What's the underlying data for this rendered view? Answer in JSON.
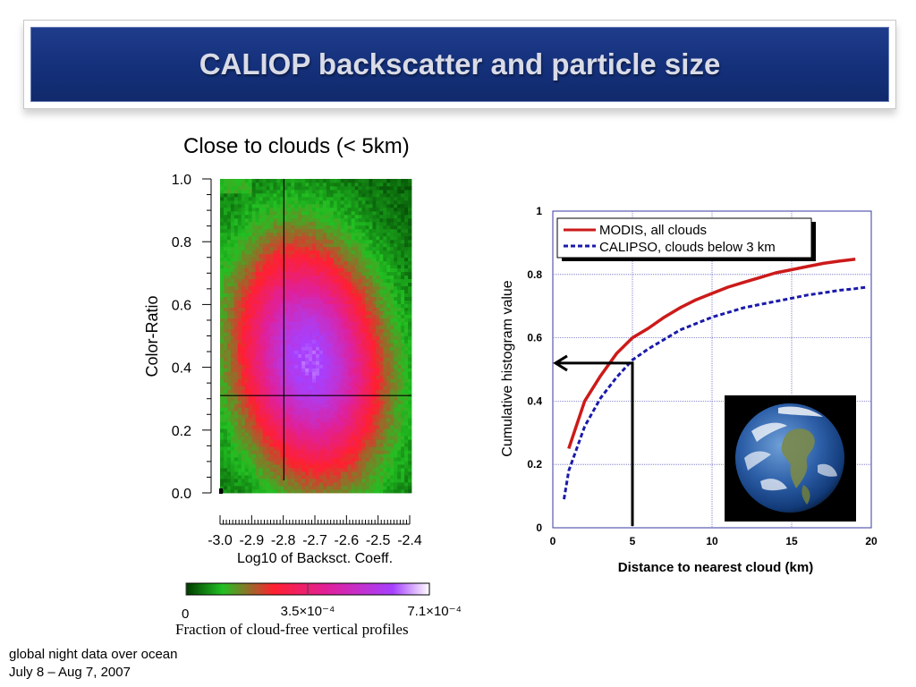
{
  "slide": {
    "title": "CALIOP backscatter and particle size",
    "subtitle": "Close to clouds (< 5km)",
    "footer_line1": "global night data over ocean",
    "footer_line2": "July 8 – Aug 7, 2007"
  },
  "chart_data": [
    {
      "type": "heatmap",
      "xlabel": "Log10 of Backsct. Coeff.",
      "ylabel": "Color-Ratio",
      "x_ticks": [
        "-3.0",
        "-2.9",
        "-2.8",
        "-2.7",
        "-2.6",
        "-2.5",
        "-2.4"
      ],
      "y_ticks": [
        "0.0",
        "0.2",
        "0.4",
        "0.6",
        "0.8",
        "1.0"
      ],
      "xlim": [
        -3.0,
        -2.4
      ],
      "ylim": [
        0.0,
        1.0
      ],
      "crosshair": {
        "x": -2.8,
        "y": 0.31
      },
      "colorbar": {
        "label": "Fraction of cloud-free vertical profiles",
        "ticks": [
          "0",
          "3.5×10⁻⁴",
          "7.1×10⁻⁴"
        ],
        "min": 0,
        "max": 0.00071,
        "colors": [
          "#003a00",
          "#22c022",
          "#ff2030",
          "#e0209a",
          "#a640ff",
          "#ffffff"
        ]
      },
      "peak": {
        "x": -2.72,
        "y": 0.42
      }
    },
    {
      "type": "line",
      "xlabel": "Distance to nearest cloud (km)",
      "ylabel": "Cumulative histogram value",
      "xlim": [
        0,
        20
      ],
      "ylim": [
        0,
        1
      ],
      "x_ticks": [
        0,
        5,
        10,
        15,
        20
      ],
      "y_ticks": [
        0,
        0.2,
        0.4,
        0.6,
        0.8,
        1
      ],
      "grid": true,
      "legend_position": "top-left",
      "series": [
        {
          "name": "MODIS, all clouds",
          "color": "#cc1a1a",
          "style": "solid",
          "x": [
            1,
            2,
            3,
            4,
            5,
            6,
            7,
            8,
            9,
            10,
            11,
            12,
            13,
            14,
            15,
            16,
            17,
            18,
            19
          ],
          "y": [
            0.25,
            0.4,
            0.48,
            0.55,
            0.6,
            0.63,
            0.665,
            0.695,
            0.72,
            0.74,
            0.76,
            0.775,
            0.79,
            0.805,
            0.815,
            0.825,
            0.835,
            0.842,
            0.848
          ]
        },
        {
          "name": "CALIPSO, clouds below 3 km",
          "color": "#1a1aaa",
          "style": "dashed",
          "x": [
            0.7,
            1,
            2,
            3,
            4,
            5,
            6,
            7,
            8,
            9,
            10,
            11,
            12,
            13,
            14,
            15,
            16,
            17,
            18,
            19,
            19.7
          ],
          "y": [
            0.09,
            0.18,
            0.32,
            0.41,
            0.475,
            0.53,
            0.565,
            0.595,
            0.625,
            0.645,
            0.665,
            0.68,
            0.695,
            0.705,
            0.715,
            0.725,
            0.735,
            0.742,
            0.75,
            0.755,
            0.76
          ]
        }
      ],
      "annotation": {
        "x": 5,
        "y": 0.52
      }
    }
  ]
}
